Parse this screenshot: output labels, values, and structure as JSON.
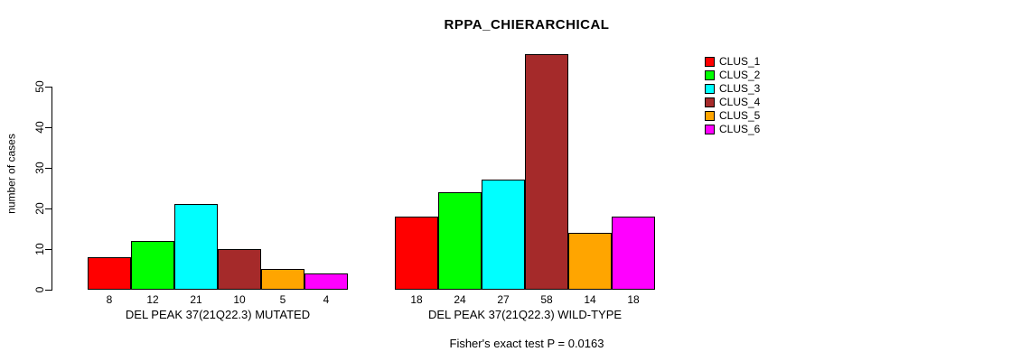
{
  "title": "RPPA_CHIERARCHICAL",
  "ylabel": "number of cases",
  "footer": "Fisher's exact test P = 0.0163",
  "chart_data": {
    "type": "bar",
    "title": "RPPA_CHIERARCHICAL",
    "ylabel": "number of cases",
    "xlabel": "",
    "yticks": [
      0,
      10,
      20,
      30,
      40,
      50
    ],
    "ylim": [
      0,
      58
    ],
    "grid": false,
    "legend_position": "right",
    "legend": [
      {
        "label": "CLUS_1",
        "color": "#FF0000"
      },
      {
        "label": "CLUS_2",
        "color": "#00FF00"
      },
      {
        "label": "CLUS_3",
        "color": "#00FFFF"
      },
      {
        "label": "CLUS_4",
        "color": "#A52A2A"
      },
      {
        "label": "CLUS_5",
        "color": "#FFA500"
      },
      {
        "label": "CLUS_6",
        "color": "#FF00FF"
      }
    ],
    "groups": [
      {
        "label": "DEL PEAK 37(21Q22.3) MUTATED",
        "values": [
          8,
          12,
          21,
          10,
          5,
          4
        ]
      },
      {
        "label": "DEL PEAK 37(21Q22.3) WILD-TYPE",
        "values": [
          18,
          24,
          27,
          58,
          14,
          18
        ]
      }
    ],
    "annotation": "Fisher's exact test P = 0.0163"
  }
}
